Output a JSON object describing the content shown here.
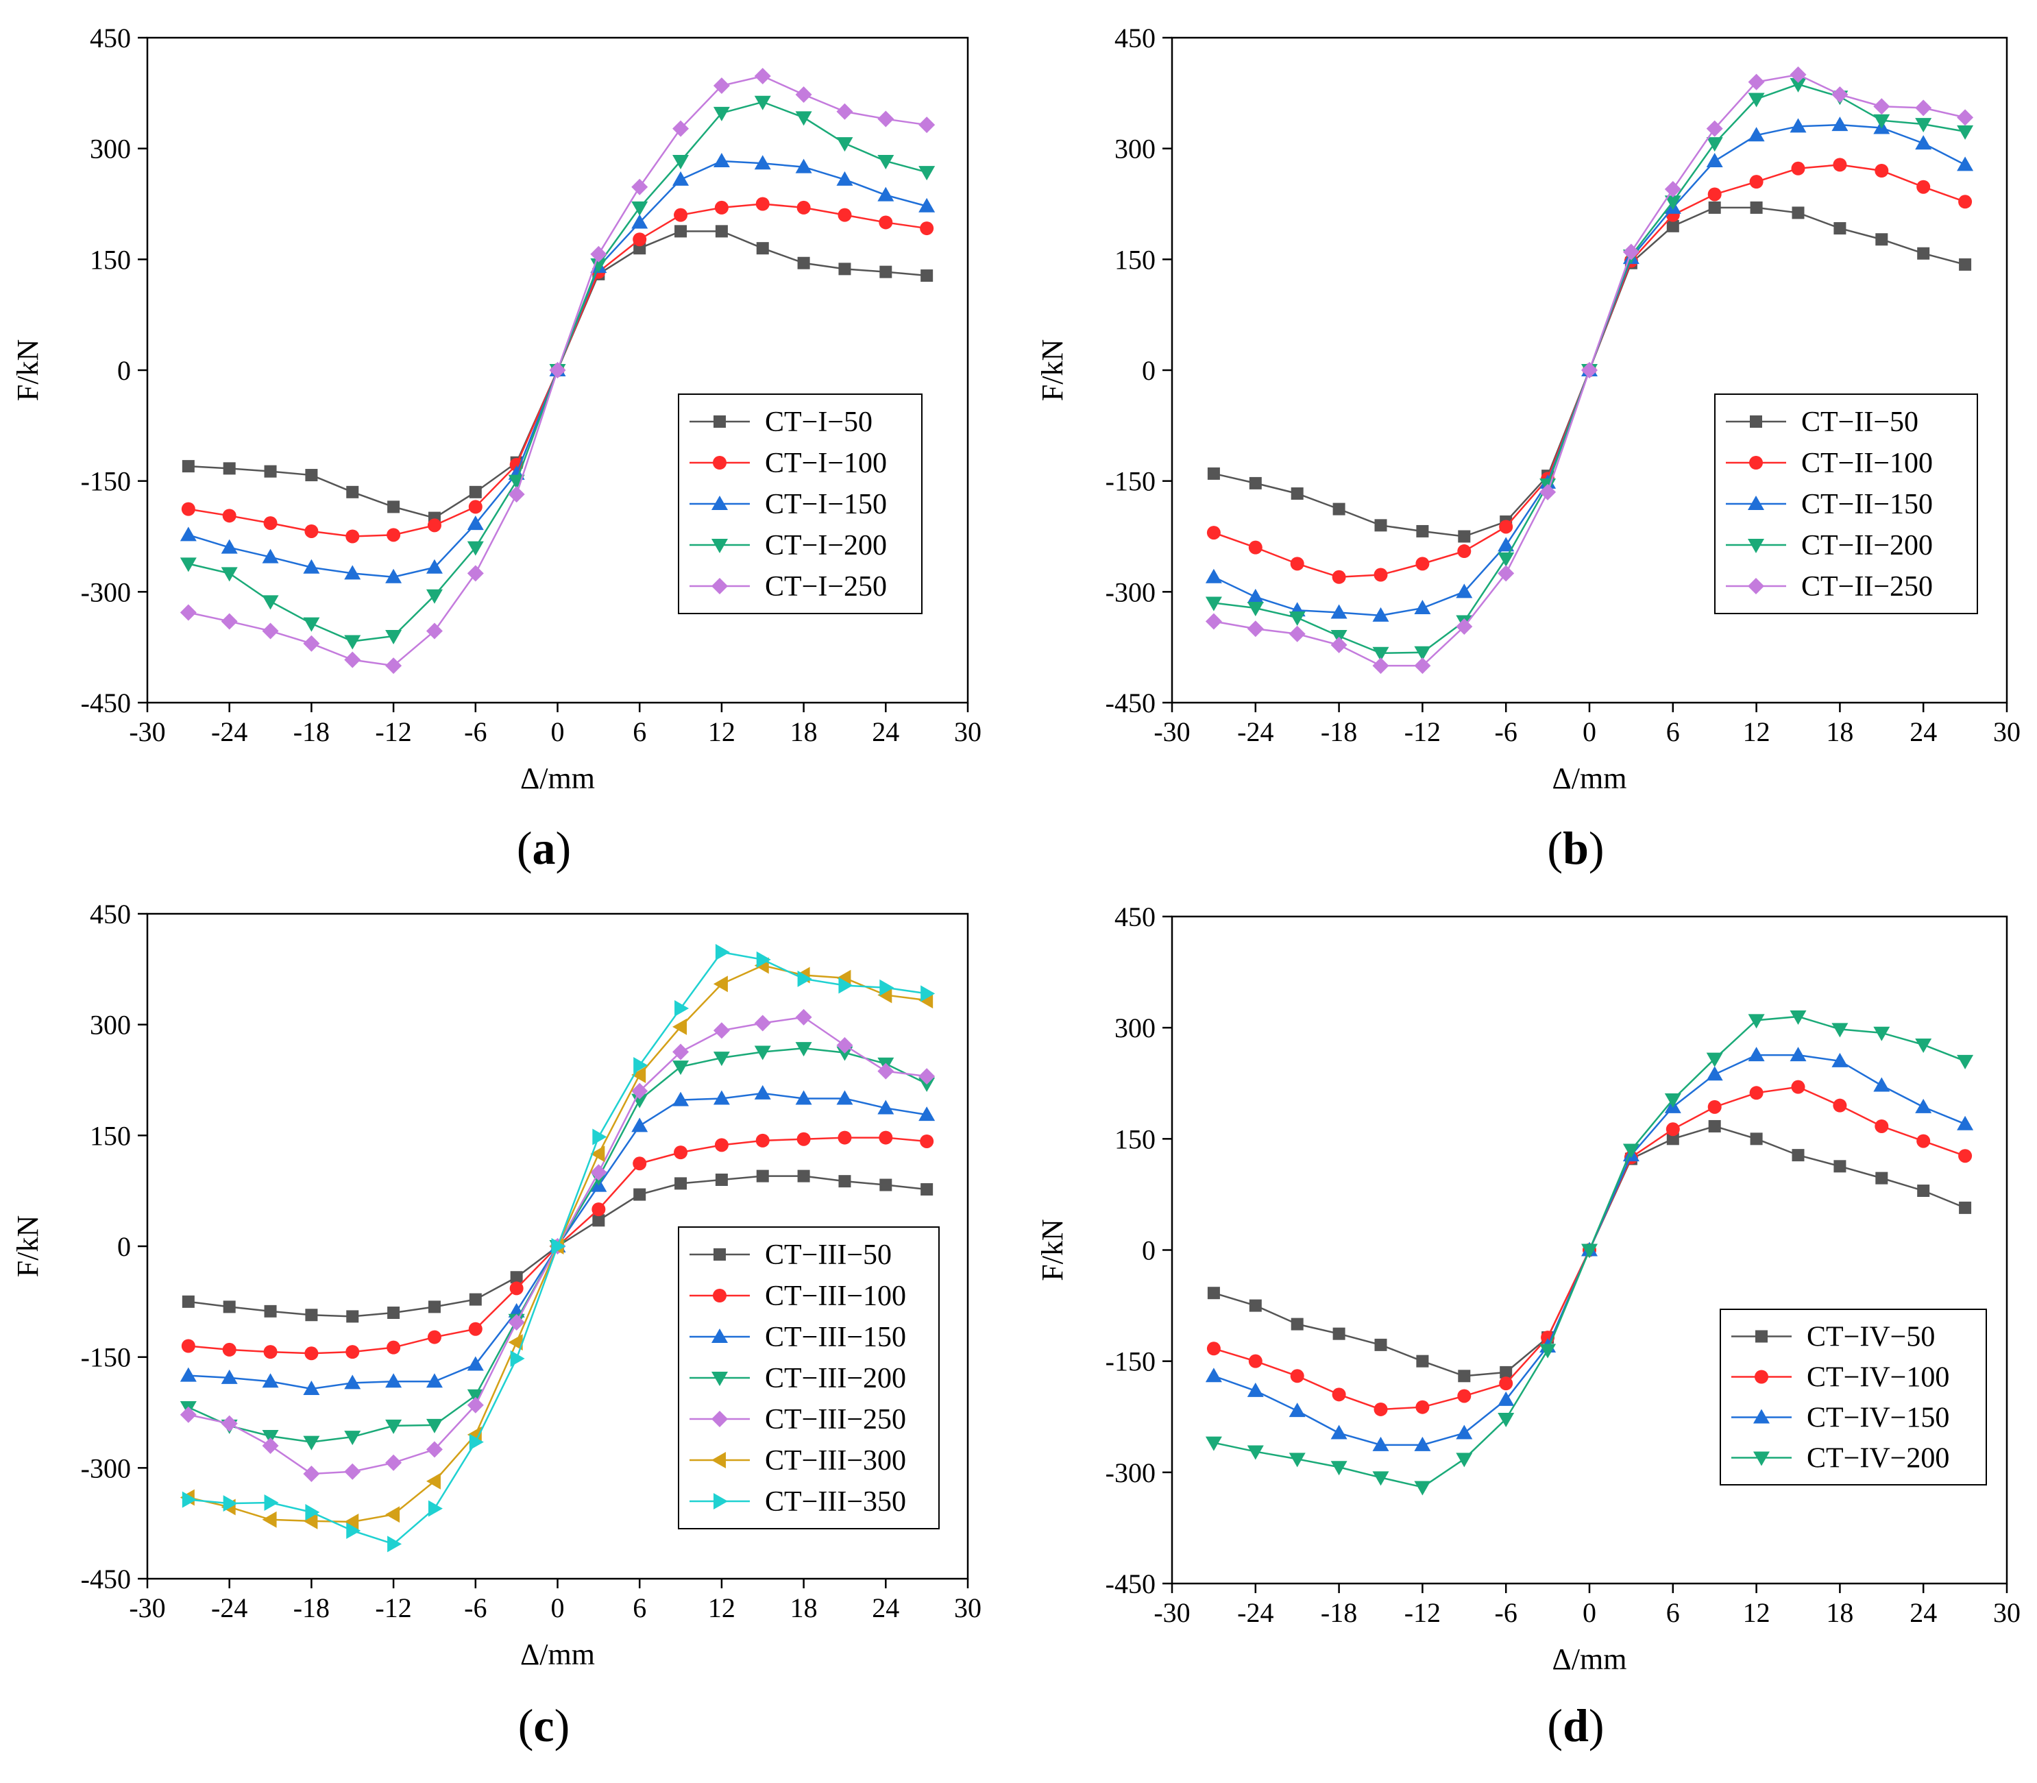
{
  "chart_data": [
    {
      "id": "a",
      "type": "line",
      "panel_label": "a",
      "xlabel": "Δ/mm",
      "ylabel": "F/kN",
      "xlim": [
        -30,
        30
      ],
      "ylim": [
        -450,
        450
      ],
      "xticks": [
        -30,
        -24,
        -18,
        -12,
        -6,
        0,
        6,
        12,
        18,
        24,
        30
      ],
      "yticks": [
        -450,
        -300,
        -150,
        0,
        150,
        300,
        450
      ],
      "legend_position": "center-right",
      "x": [
        -27,
        -24,
        -21,
        -18,
        -15,
        -12,
        -9,
        -6,
        -3,
        0,
        3,
        6,
        9,
        12,
        15,
        18,
        21,
        24,
        27
      ],
      "series": [
        {
          "name": "CT−I−50",
          "color": "#555555",
          "marker": "square",
          "values": [
            -130,
            -133,
            -137,
            -142,
            -165,
            -185,
            -200,
            -165,
            -125,
            0,
            130,
            165,
            188,
            188,
            165,
            145,
            137,
            133,
            128
          ]
        },
        {
          "name": "CT−I−100",
          "color": "#ff2a2a",
          "marker": "circle",
          "values": [
            -188,
            -197,
            -207,
            -218,
            -225,
            -223,
            -210,
            -185,
            -128,
            0,
            133,
            177,
            210,
            220,
            225,
            220,
            210,
            200,
            192
          ]
        },
        {
          "name": "CT−I−150",
          "color": "#1f6fd8",
          "marker": "triangle-up",
          "values": [
            -223,
            -240,
            -253,
            -267,
            -275,
            -280,
            -267,
            -208,
            -140,
            0,
            140,
            200,
            258,
            283,
            280,
            275,
            258,
            237,
            222
          ]
        },
        {
          "name": "CT−I−200",
          "color": "#1aaa78",
          "marker": "triangle-down",
          "values": [
            -262,
            -275,
            -313,
            -343,
            -367,
            -360,
            -305,
            -240,
            -150,
            0,
            143,
            220,
            283,
            348,
            363,
            342,
            307,
            283,
            268
          ]
        },
        {
          "name": "CT−I−250",
          "color": "#c47bdd",
          "marker": "diamond",
          "values": [
            -328,
            -340,
            -353,
            -370,
            -392,
            -400,
            -353,
            -275,
            -168,
            0,
            157,
            248,
            327,
            385,
            398,
            373,
            350,
            340,
            332
          ]
        }
      ]
    },
    {
      "id": "b",
      "type": "line",
      "panel_label": "b",
      "xlabel": "Δ/mm",
      "ylabel": "F/kN",
      "xlim": [
        -30,
        30
      ],
      "ylim": [
        -450,
        450
      ],
      "xticks": [
        -30,
        -24,
        -18,
        -12,
        -6,
        0,
        6,
        12,
        18,
        24,
        30
      ],
      "yticks": [
        -450,
        -300,
        -150,
        0,
        150,
        300,
        450
      ],
      "legend_position": "center-right",
      "x": [
        -27,
        -24,
        -21,
        -18,
        -15,
        -12,
        -9,
        -6,
        -3,
        0,
        3,
        6,
        9,
        12,
        15,
        18,
        21,
        24,
        27
      ],
      "series": [
        {
          "name": "CT−II−50",
          "color": "#555555",
          "marker": "square",
          "values": [
            -140,
            -153,
            -167,
            -188,
            -210,
            -218,
            -225,
            -205,
            -143,
            0,
            145,
            195,
            220,
            220,
            213,
            192,
            177,
            158,
            143
          ]
        },
        {
          "name": "CT−II−100",
          "color": "#ff2a2a",
          "marker": "circle",
          "values": [
            -220,
            -240,
            -262,
            -280,
            -277,
            -262,
            -245,
            -212,
            -147,
            0,
            148,
            210,
            238,
            255,
            273,
            278,
            270,
            248,
            228
          ]
        },
        {
          "name": "CT−II−150",
          "color": "#1f6fd8",
          "marker": "triangle-up",
          "values": [
            -280,
            -307,
            -325,
            -328,
            -332,
            -322,
            -300,
            -237,
            -152,
            0,
            152,
            220,
            283,
            318,
            330,
            332,
            328,
            307,
            278
          ]
        },
        {
          "name": "CT−II−200",
          "color": "#1aaa78",
          "marker": "triangle-down",
          "values": [
            -315,
            -322,
            -335,
            -360,
            -383,
            -382,
            -340,
            -255,
            -155,
            0,
            155,
            228,
            307,
            367,
            387,
            370,
            338,
            333,
            323
          ]
        },
        {
          "name": "CT−II−250",
          "color": "#c47bdd",
          "marker": "diamond",
          "values": [
            -340,
            -350,
            -357,
            -372,
            -400,
            -400,
            -347,
            -275,
            -165,
            0,
            160,
            245,
            327,
            390,
            400,
            373,
            357,
            355,
            342
          ]
        }
      ]
    },
    {
      "id": "c",
      "type": "line",
      "panel_label": "c",
      "xlabel": "Δ/mm",
      "ylabel": "F/kN",
      "xlim": [
        -30,
        30
      ],
      "ylim": [
        -450,
        450
      ],
      "xticks": [
        -30,
        -24,
        -18,
        -12,
        -6,
        0,
        6,
        12,
        18,
        24,
        30
      ],
      "yticks": [
        -450,
        -300,
        -150,
        0,
        150,
        300,
        450
      ],
      "legend_position": "center-right",
      "x": [
        -27,
        -24,
        -21,
        -18,
        -15,
        -12,
        -9,
        -6,
        -3,
        0,
        3,
        6,
        9,
        12,
        15,
        18,
        21,
        24,
        27
      ],
      "series": [
        {
          "name": "CT−III−50",
          "color": "#555555",
          "marker": "square",
          "values": [
            -75,
            -82,
            -88,
            -93,
            -95,
            -90,
            -82,
            -72,
            -42,
            0,
            35,
            70,
            85,
            90,
            95,
            95,
            88,
            83,
            77
          ]
        },
        {
          "name": "CT−III−100",
          "color": "#ff2a2a",
          "marker": "circle",
          "values": [
            -135,
            -140,
            -143,
            -145,
            -143,
            -137,
            -123,
            -112,
            -57,
            0,
            50,
            112,
            127,
            137,
            143,
            145,
            147,
            147,
            142
          ]
        },
        {
          "name": "CT−III−150",
          "color": "#1f6fd8",
          "marker": "triangle-up",
          "values": [
            -175,
            -178,
            -183,
            -193,
            -185,
            -183,
            -183,
            -160,
            -88,
            0,
            82,
            163,
            198,
            200,
            207,
            200,
            200,
            187,
            178
          ]
        },
        {
          "name": "CT−III−200",
          "color": "#1aaa78",
          "marker": "triangle-down",
          "values": [
            -218,
            -243,
            -257,
            -265,
            -258,
            -243,
            -242,
            -202,
            -100,
            0,
            93,
            198,
            243,
            255,
            263,
            268,
            262,
            247,
            220
          ]
        },
        {
          "name": "CT−III−250",
          "color": "#c47bdd",
          "marker": "diamond",
          "values": [
            -228,
            -240,
            -270,
            -308,
            -305,
            -293,
            -275,
            -215,
            -103,
            0,
            100,
            210,
            263,
            292,
            302,
            310,
            272,
            237,
            230
          ]
        },
        {
          "name": "CT−III−300",
          "color": "#d4a017",
          "marker": "triangle-left",
          "values": [
            -340,
            -353,
            -370,
            -372,
            -373,
            -363,
            -318,
            -255,
            -130,
            0,
            125,
            232,
            297,
            355,
            380,
            367,
            363,
            340,
            333
          ]
        },
        {
          "name": "CT−III−350",
          "color": "#1fd1d1",
          "marker": "triangle-right",
          "values": [
            -343,
            -348,
            -347,
            -360,
            -385,
            -403,
            -355,
            -265,
            -152,
            0,
            148,
            245,
            322,
            398,
            388,
            362,
            353,
            350,
            342
          ]
        }
      ]
    },
    {
      "id": "d",
      "type": "line",
      "panel_label": "d",
      "xlabel": "Δ/mm",
      "ylabel": "F/kN",
      "xlim": [
        -30,
        30
      ],
      "ylim": [
        -450,
        450
      ],
      "xticks": [
        -30,
        -24,
        -18,
        -12,
        -6,
        0,
        6,
        12,
        18,
        24,
        30
      ],
      "yticks": [
        -450,
        -300,
        -150,
        0,
        150,
        300,
        450
      ],
      "legend_position": "bottom-right",
      "x": [
        -27,
        -24,
        -21,
        -18,
        -15,
        -12,
        -9,
        -6,
        -3,
        0,
        3,
        6,
        9,
        12,
        15,
        18,
        21,
        24,
        27
      ],
      "series": [
        {
          "name": "CT−IV−50",
          "color": "#555555",
          "marker": "square",
          "values": [
            -58,
            -75,
            -100,
            -113,
            -128,
            -150,
            -170,
            -165,
            -118,
            0,
            123,
            150,
            167,
            150,
            128,
            113,
            97,
            80,
            57
          ]
        },
        {
          "name": "CT−IV−100",
          "color": "#ff2a2a",
          "marker": "circle",
          "values": [
            -133,
            -150,
            -170,
            -195,
            -215,
            -212,
            -197,
            -180,
            -118,
            0,
            125,
            163,
            193,
            212,
            220,
            195,
            167,
            147,
            127
          ]
        },
        {
          "name": "CT−IV−150",
          "color": "#1f6fd8",
          "marker": "triangle-up",
          "values": [
            -170,
            -190,
            -217,
            -247,
            -263,
            -263,
            -247,
            -202,
            -130,
            0,
            128,
            193,
            237,
            263,
            263,
            255,
            222,
            193,
            170
          ]
        },
        {
          "name": "CT−IV−200",
          "color": "#1aaa78",
          "marker": "triangle-down",
          "values": [
            -260,
            -272,
            -282,
            -293,
            -307,
            -320,
            -282,
            -228,
            -135,
            0,
            135,
            203,
            258,
            310,
            315,
            298,
            293,
            277,
            255
          ]
        }
      ]
    }
  ]
}
